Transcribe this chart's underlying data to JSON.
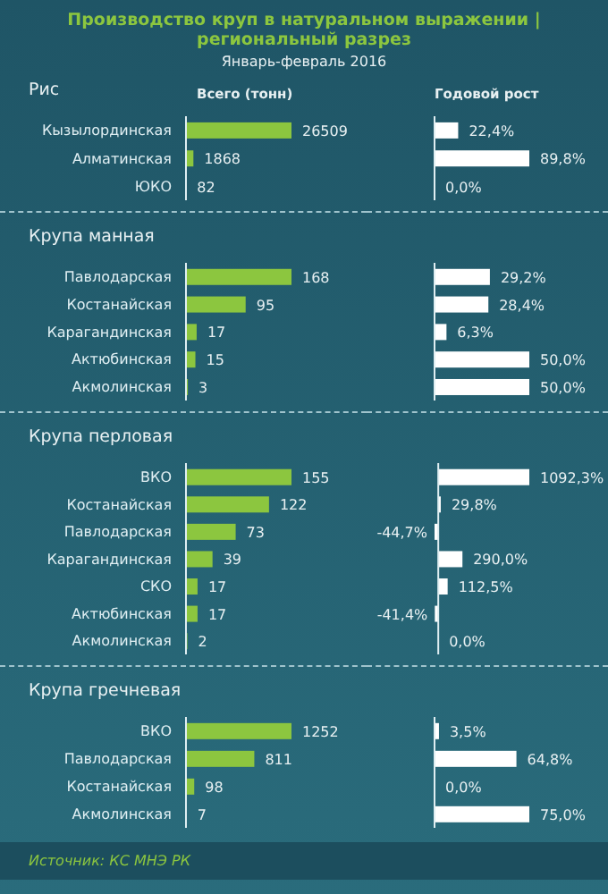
{
  "chart_data": [
    {
      "type": "other",
      "title": "Производство круп в натуральном выражении | региональный разрез",
      "subtitle": "Январь-февраль 2016"
    },
    {
      "type": "bar",
      "orientation": "horizontal",
      "title": "Рис",
      "subtitle": "Всего (тонн)",
      "categories": [
        "Кызылординская",
        "Алматинская",
        "ЮКО"
      ],
      "values": [
        26509,
        1868,
        82
      ],
      "color": "#8cc63f",
      "data_labels": true
    },
    {
      "type": "bar",
      "orientation": "horizontal",
      "title": "Годовой рост",
      "categories": [
        null,
        null,
        null
      ],
      "values": [
        22.4,
        89.8,
        0.0
      ],
      "value_labels": [
        "22,4%",
        "89,8%",
        "0,0%"
      ],
      "color": "#ffffff"
    },
    {
      "type": "bar",
      "orientation": "horizontal",
      "title": "Крупа манная",
      "categories": [
        "Павлодарская",
        "Костанайская",
        "Карагандинская",
        "Актюбинская",
        "Акмолинская"
      ],
      "values": [
        168,
        95,
        17,
        15,
        3
      ],
      "color": "#8cc63f",
      "data_labels": true
    },
    {
      "type": "bar",
      "orientation": "horizontal",
      "categories": [
        null,
        null,
        null,
        null,
        null
      ],
      "values": [
        29.2,
        28.4,
        6.3,
        50.0,
        50.0
      ],
      "value_labels": [
        "29,2%",
        "28,4%",
        "6,3%",
        "50,0%",
        "50,0%"
      ],
      "color": "#ffffff"
    },
    {
      "type": "bar",
      "orientation": "horizontal",
      "title": "Крупа перловая",
      "categories": [
        "ВКО",
        "Костанайская",
        "Павлодарская",
        "Карагандинская",
        "СКО",
        "Актюбинская",
        "Акмолинская"
      ],
      "values": [
        155,
        122,
        73,
        39,
        17,
        17,
        2
      ],
      "color": "#8cc63f",
      "data_labels": true
    },
    {
      "type": "bar",
      "orientation": "horizontal",
      "categories": [
        null,
        null,
        null,
        null,
        null,
        null,
        null
      ],
      "values": [
        1092.3,
        29.8,
        -44.7,
        290.0,
        112.5,
        -41.4,
        0.0
      ],
      "value_labels": [
        "1092,3%",
        "29,8%",
        "-44,7%",
        "290,0%",
        "112,5%",
        "-41,4%",
        "0,0%"
      ],
      "color": "#ffffff"
    },
    {
      "type": "bar",
      "orientation": "horizontal",
      "title": "Крупа гречневая",
      "categories": [
        "ВКО",
        "Павлодарская",
        "Костанайская",
        "Акмолинская"
      ],
      "values": [
        1252,
        811,
        98,
        7
      ],
      "color": "#8cc63f",
      "data_labels": true
    },
    {
      "type": "bar",
      "orientation": "horizontal",
      "categories": [
        null,
        null,
        null,
        null
      ],
      "values": [
        3.5,
        64.8,
        0.0,
        75.0
      ],
      "value_labels": [
        "3,5%",
        "64,8%",
        "0,0%",
        "75,0%"
      ],
      "color": "#ffffff"
    },
    {
      "type": "other",
      "annotations": [
        "Источник: КС МНЭ РК"
      ]
    }
  ]
}
